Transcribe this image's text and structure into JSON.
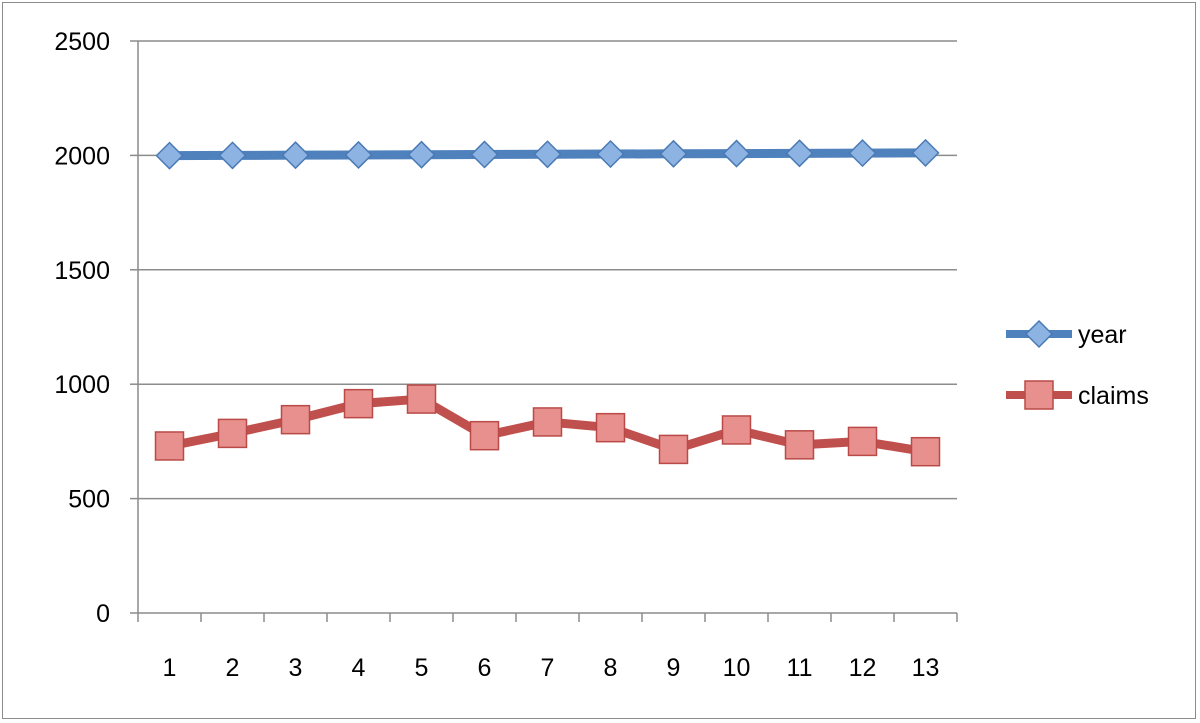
{
  "chart_data": {
    "type": "line",
    "title": "",
    "xlabel": "",
    "ylabel": "",
    "categories": [
      "1",
      "2",
      "3",
      "4",
      "5",
      "6",
      "7",
      "8",
      "9",
      "10",
      "11",
      "12",
      "13"
    ],
    "ylim": [
      0,
      2500
    ],
    "yticks": [
      "0",
      "500",
      "1000",
      "1500",
      "2000",
      "2500"
    ],
    "grid": true,
    "legend": "right",
    "series": [
      {
        "name": "year",
        "color": "#4f81bd",
        "marker": "diamond",
        "values": [
          1999,
          2000,
          2001,
          2002,
          2003,
          2004,
          2005,
          2006,
          2007,
          2008,
          2009,
          2010,
          2011
        ]
      },
      {
        "name": "claims",
        "color": "#c0504d",
        "marker": "square",
        "values": [
          730,
          785,
          845,
          915,
          935,
          775,
          835,
          810,
          715,
          800,
          735,
          750,
          705
        ]
      }
    ]
  }
}
